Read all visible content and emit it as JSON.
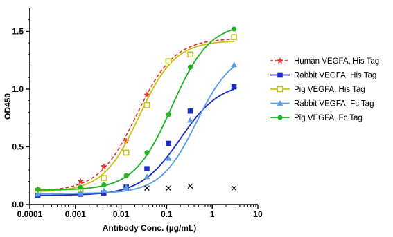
{
  "chart_data": {
    "type": "line",
    "title": "",
    "xlabel": "Antibody Conc. (µg/mL)",
    "ylabel": "OD450",
    "xscale": "log",
    "xlim": [
      0.0001,
      10
    ],
    "ylim": [
      0,
      1.7
    ],
    "x_ticks": [
      0.0001,
      0.001,
      0.01,
      0.1,
      1,
      10
    ],
    "x_tick_labels": [
      "0.0001",
      "0.001",
      "0.01",
      "0.1",
      "1",
      "10"
    ],
    "y_ticks": [
      0,
      0.5,
      1.0,
      1.5
    ],
    "y_tick_labels": [
      "0.0",
      "0.5",
      "1.0",
      "1.5"
    ],
    "grid": false,
    "legend_position": "right",
    "series": [
      {
        "name": "Human VEGFA, His Tag",
        "color": "#e8322b",
        "marker": "star",
        "line_style": "dashed",
        "x": [
          0.00015,
          0.0013,
          0.0042,
          0.013,
          0.037,
          0.11,
          0.33,
          3.0
        ],
        "y": [
          0.13,
          0.2,
          0.33,
          0.55,
          0.95,
          1.24,
          1.3,
          1.45
        ],
        "fit": {
          "bottom": 0.115,
          "top": 1.44,
          "ec50": 0.022,
          "hill": 1.05
        }
      },
      {
        "name": "Rabbit VEGFA, His Tag",
        "color": "#1f2fbf",
        "marker": "square-filled",
        "line_style": "solid",
        "x": [
          0.00015,
          0.0013,
          0.0042,
          0.013,
          0.037,
          0.11,
          0.33,
          3.0
        ],
        "y": [
          0.08,
          0.09,
          0.1,
          0.15,
          0.31,
          0.53,
          0.81,
          1.02
        ],
        "fit": {
          "bottom": 0.08,
          "top": 1.06,
          "ec50": 0.2,
          "hill": 1.0
        }
      },
      {
        "name": "Pig VEGFA, His Tag",
        "color": "#c8c21a",
        "marker": "square-open",
        "line_style": "solid",
        "x": [
          0.00015,
          0.0013,
          0.0042,
          0.013,
          0.037,
          0.11,
          0.33,
          3.0
        ],
        "y": [
          0.12,
          0.13,
          0.23,
          0.45,
          0.86,
          1.24,
          1.3,
          1.45
        ],
        "fit": {
          "bottom": 0.11,
          "top": 1.42,
          "ec50": 0.025,
          "hill": 1.1
        }
      },
      {
        "name": "Rabbit VEGFA, Fc Tag",
        "color": "#5b9ee8",
        "marker": "triangle",
        "line_style": "solid",
        "x": [
          0.00015,
          0.0013,
          0.0042,
          0.013,
          0.037,
          0.11,
          0.33,
          3.0
        ],
        "y": [
          0.09,
          0.1,
          0.12,
          0.15,
          0.24,
          0.4,
          0.73,
          1.21
        ],
        "fit": {
          "bottom": 0.095,
          "top": 1.33,
          "ec50": 0.45,
          "hill": 1.1
        }
      },
      {
        "name": "Pig VEGFA, Fc Tag",
        "color": "#22b424",
        "marker": "circle",
        "line_style": "solid",
        "x": [
          0.00015,
          0.0013,
          0.0042,
          0.013,
          0.037,
          0.11,
          0.33,
          3.0
        ],
        "y": [
          0.13,
          0.15,
          0.17,
          0.25,
          0.45,
          0.78,
          1.19,
          1.52
        ],
        "fit": {
          "bottom": 0.125,
          "top": 1.57,
          "ec50": 0.13,
          "hill": 1.05
        }
      },
      {
        "name": "",
        "color": "#000000",
        "marker": "x",
        "line_style": "none",
        "x": [
          0.037,
          0.11,
          0.33,
          3.0
        ],
        "y": [
          0.14,
          0.14,
          0.16,
          0.14
        ]
      }
    ]
  }
}
